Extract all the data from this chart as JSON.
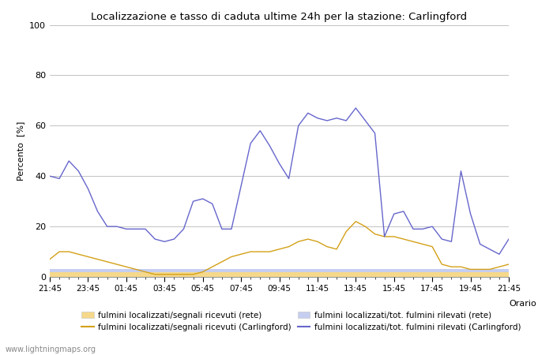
{
  "title": "Localizzazione e tasso di caduta ultime 24h per la stazione: Carlingford",
  "xlabel": "Orario",
  "ylabel": "Percento  [%]",
  "ylim": [
    0,
    100
  ],
  "yticks": [
    0,
    20,
    40,
    60,
    80,
    100
  ],
  "x_labels": [
    "21:45",
    "23:45",
    "01:45",
    "03:45",
    "05:45",
    "07:45",
    "09:45",
    "11:45",
    "13:45",
    "15:45",
    "17:45",
    "19:45",
    "21:45"
  ],
  "background_color": "#ffffff",
  "watermark": "www.lightningmaps.org",
  "sig_carl_y": [
    7,
    10,
    10,
    9,
    8,
    7,
    6,
    5,
    4,
    3,
    2,
    1,
    1,
    1,
    1,
    1,
    2,
    4,
    6,
    8,
    9,
    10,
    10,
    10,
    11,
    12,
    14,
    15,
    14,
    12,
    11,
    18,
    22,
    20,
    17,
    16,
    16,
    15,
    14,
    13,
    12,
    5,
    4,
    4,
    3,
    3,
    3,
    4,
    5
  ],
  "tot_carl_y": [
    40,
    39,
    46,
    42,
    35,
    26,
    20,
    20,
    19,
    19,
    19,
    15,
    14,
    15,
    19,
    30,
    31,
    29,
    19,
    19,
    36,
    53,
    58,
    52,
    45,
    39,
    60,
    65,
    63,
    62,
    63,
    62,
    67,
    62,
    57,
    16,
    25,
    26,
    19,
    19,
    20,
    15,
    14,
    42,
    25,
    13,
    11,
    9,
    15
  ],
  "loc_rete_y": [
    2,
    2,
    2,
    2,
    2,
    2,
    2,
    2,
    2,
    2,
    2,
    2,
    2,
    2,
    2,
    2,
    2,
    2,
    2,
    2,
    2,
    2,
    2,
    2,
    2,
    2,
    2,
    2,
    2,
    2,
    2,
    2,
    2,
    2,
    2,
    2,
    2,
    2,
    2,
    2,
    2,
    2,
    2,
    2,
    2,
    2,
    2,
    2,
    2
  ],
  "tot_rete_y": [
    3,
    3,
    3,
    3,
    3,
    3,
    3,
    3,
    3,
    3,
    3,
    3,
    3,
    3,
    3,
    3,
    3,
    3,
    3,
    3,
    3,
    3,
    3,
    3,
    3,
    3,
    3,
    3,
    3,
    3,
    3,
    3,
    3,
    3,
    3,
    3,
    3,
    3,
    3,
    3,
    3,
    3,
    3,
    3,
    3,
    3,
    3,
    3,
    3
  ],
  "color_sig_rete": "#f5d88a",
  "color_sig_carl": "#d4a017",
  "color_tot_rete": "#c5cef0",
  "color_tot_carl": "#6666cc",
  "legend_labels": [
    "fulmini localizzati/segnali ricevuti (rete)",
    "fulmini localizzati/segnali ricevuti (Carlingford)",
    "fulmini localizzati/tot. fulmini rilevati (rete)",
    "fulmini localizzati/tot. fulmini rilevati (Carlingford)"
  ]
}
